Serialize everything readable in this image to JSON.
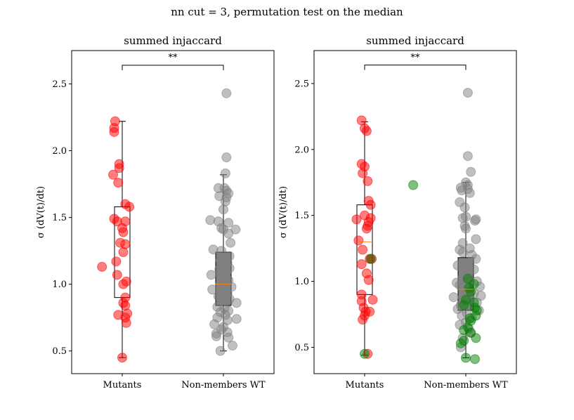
{
  "figure": {
    "suptitle": "nn cut = 3, permutation test on the median"
  },
  "chart_data": [
    {
      "type": "scatter",
      "subtype": "box-and-strip",
      "title": "summed injaccard",
      "xlabel": "",
      "ylabel": "σ (dV(t)/dt)",
      "categories": [
        "Mutants",
        "Non-members WT"
      ],
      "ylim": [
        0.33,
        2.75
      ],
      "yticks": [
        0.5,
        1.0,
        1.5,
        2.0,
        2.5
      ],
      "ytick_labels": [
        "0.5",
        "1.0",
        "1.5",
        "2.0",
        "2.5"
      ],
      "grid": false,
      "significance": {
        "label": "**",
        "between": [
          "Mutants",
          "Non-members WT"
        ],
        "y": 2.64
      },
      "boxes": [
        {
          "category": "Mutants",
          "whisker_low": 0.45,
          "q1": 0.9,
          "median": 1.31,
          "q3": 1.58,
          "whisker_high": 2.22,
          "fill": "none"
        },
        {
          "category": "Non-members WT",
          "whisker_low": 0.5,
          "q1": 0.84,
          "median": 1.0,
          "q3": 1.24,
          "whisker_high": 1.82,
          "fill": "#808080"
        }
      ],
      "series": [
        {
          "category": "Mutants",
          "color": "#ff0000",
          "points": [
            [
              -0.07,
              2.22
            ],
            [
              -0.08,
              2.17
            ],
            [
              -0.08,
              2.14
            ],
            [
              -0.03,
              1.9
            ],
            [
              -0.03,
              1.87
            ],
            [
              -0.09,
              1.82
            ],
            [
              -0.04,
              1.76
            ],
            [
              0.03,
              1.6
            ],
            [
              0.07,
              1.58
            ],
            [
              -0.08,
              1.49
            ],
            [
              -0.05,
              1.47
            ],
            [
              0.03,
              1.47
            ],
            [
              0.0,
              1.42
            ],
            [
              0.01,
              1.39
            ],
            [
              -0.02,
              1.31
            ],
            [
              0.03,
              1.3
            ],
            [
              0.01,
              1.24
            ],
            [
              -0.06,
              1.17
            ],
            [
              -0.2,
              1.13
            ],
            [
              -0.05,
              1.07
            ],
            [
              0.04,
              1.02
            ],
            [
              0.01,
              1.0
            ],
            [
              0.03,
              0.9
            ],
            [
              0.01,
              0.86
            ],
            [
              0.03,
              0.84
            ],
            [
              -0.04,
              0.77
            ],
            [
              0.05,
              0.78
            ],
            [
              0.03,
              0.75
            ],
            [
              0.04,
              0.71
            ],
            [
              0.0,
              0.45
            ]
          ]
        },
        {
          "category": "Non-members WT",
          "color": "#808080",
          "points": [
            [
              0.03,
              2.43
            ],
            [
              0.03,
              1.95
            ],
            [
              0.02,
              1.83
            ],
            [
              -0.05,
              1.72
            ],
            [
              0.01,
              1.72
            ],
            [
              0.03,
              1.7
            ],
            [
              0.05,
              1.68
            ],
            [
              -0.04,
              1.66
            ],
            [
              0.03,
              1.65
            ],
            [
              0.02,
              1.62
            ],
            [
              0.0,
              1.56
            ],
            [
              -0.13,
              1.48
            ],
            [
              -0.05,
              1.47
            ],
            [
              0.05,
              1.46
            ],
            [
              -0.02,
              1.42
            ],
            [
              0.12,
              1.41
            ],
            [
              0.0,
              1.41
            ],
            [
              0.05,
              1.38
            ],
            [
              0.07,
              1.31
            ],
            [
              -0.1,
              1.26
            ],
            [
              -0.02,
              1.25
            ],
            [
              0.06,
              1.21
            ],
            [
              -0.03,
              1.18
            ],
            [
              0.04,
              1.16
            ],
            [
              0.01,
              1.14
            ],
            [
              0.06,
              1.12
            ],
            [
              -0.04,
              1.11
            ],
            [
              0.03,
              1.09
            ],
            [
              -0.12,
              1.07
            ],
            [
              0.02,
              1.06
            ],
            [
              0.05,
              1.03
            ],
            [
              -0.03,
              1.0
            ],
            [
              0.08,
              0.98
            ],
            [
              -0.11,
              0.96
            ],
            [
              0.0,
              0.95
            ],
            [
              0.04,
              0.93
            ],
            [
              -0.05,
              0.91
            ],
            [
              0.06,
              0.89
            ],
            [
              0.13,
              0.86
            ],
            [
              -0.06,
              0.83
            ],
            [
              0.01,
              0.82
            ],
            [
              0.05,
              0.8
            ],
            [
              -0.03,
              0.79
            ],
            [
              0.02,
              0.77
            ],
            [
              -0.06,
              0.75
            ],
            [
              0.04,
              0.73
            ],
            [
              0.13,
              0.74
            ],
            [
              -0.09,
              0.7
            ],
            [
              0.0,
              0.68
            ],
            [
              -0.02,
              0.66
            ],
            [
              0.04,
              0.64
            ],
            [
              -0.07,
              0.63
            ],
            [
              -0.07,
              0.61
            ],
            [
              0.05,
              0.6
            ],
            [
              0.09,
              0.54
            ],
            [
              -0.03,
              0.5
            ]
          ]
        }
      ]
    },
    {
      "type": "scatter",
      "subtype": "box-and-strip",
      "title": "summed injaccard",
      "xlabel": "",
      "ylabel": "σ (dV(t)/dt)",
      "categories": [
        "Mutants",
        "Non-members WT"
      ],
      "ylim": [
        0.3,
        2.75
      ],
      "yticks": [
        0.5,
        1.0,
        1.5,
        2.0,
        2.5
      ],
      "ytick_labels": [
        "0.5",
        "1.0",
        "1.5",
        "2.0",
        "2.5"
      ],
      "grid": false,
      "significance": {
        "label": "**",
        "between": [
          "Mutants",
          "Non-members WT"
        ],
        "y": 2.64
      },
      "boxes": [
        {
          "category": "Mutants",
          "whisker_low": 0.44,
          "q1": 0.9,
          "median": 1.3,
          "q3": 1.58,
          "whisker_high": 2.21,
          "fill": "none"
        },
        {
          "category": "Non-members WT",
          "whisker_low": 0.42,
          "q1": 0.78,
          "median": 0.94,
          "q3": 1.18,
          "whisker_high": 1.75,
          "fill": "#808080"
        }
      ],
      "series": [
        {
          "category": "Mutants",
          "color": "#ff0000",
          "points": [
            [
              -0.03,
              2.22
            ],
            [
              0.0,
              2.16
            ],
            [
              0.02,
              2.14
            ],
            [
              -0.03,
              1.89
            ],
            [
              0.0,
              1.87
            ],
            [
              -0.02,
              1.82
            ],
            [
              0.03,
              1.76
            ],
            [
              0.04,
              1.61
            ],
            [
              0.06,
              1.58
            ],
            [
              -0.08,
              1.47
            ],
            [
              0.0,
              1.5
            ],
            [
              0.06,
              1.48
            ],
            [
              0.04,
              1.45
            ],
            [
              0.03,
              1.42
            ],
            [
              0.02,
              1.4
            ],
            [
              -0.06,
              1.31
            ],
            [
              -0.02,
              1.24
            ],
            [
              0.07,
              1.17
            ],
            [
              0.05,
              1.17
            ],
            [
              -0.03,
              1.13
            ],
            [
              0.02,
              1.06
            ],
            [
              0.04,
              1.01
            ],
            [
              -0.03,
              0.9
            ],
            [
              0.08,
              0.86
            ],
            [
              -0.03,
              0.85
            ],
            [
              -0.01,
              0.8
            ],
            [
              0.01,
              0.77
            ],
            [
              0.05,
              0.77
            ],
            [
              0.0,
              0.74
            ],
            [
              -0.02,
              0.71
            ],
            [
              0.03,
              0.45
            ]
          ]
        },
        {
          "category": "Non-members WT",
          "color": "#808080",
          "points": [
            [
              0.02,
              2.43
            ],
            [
              0.02,
              1.95
            ],
            [
              0.05,
              1.83
            ],
            [
              0.0,
              1.75
            ],
            [
              0.02,
              1.73
            ],
            [
              -0.05,
              1.71
            ],
            [
              0.02,
              1.7
            ],
            [
              -0.04,
              1.69
            ],
            [
              0.04,
              1.67
            ],
            [
              -0.06,
              1.6
            ],
            [
              -0.01,
              1.56
            ],
            [
              0.0,
              1.49
            ],
            [
              0.1,
              1.47
            ],
            [
              -0.03,
              1.48
            ],
            [
              0.09,
              1.46
            ],
            [
              -0.01,
              1.42
            ],
            [
              0.0,
              1.4
            ],
            [
              0.1,
              1.32
            ],
            [
              -0.03,
              1.29
            ],
            [
              0.04,
              1.25
            ],
            [
              -0.06,
              1.24
            ],
            [
              -0.03,
              1.22
            ],
            [
              0.06,
              1.2
            ],
            [
              0.1,
              1.17
            ],
            [
              -0.08,
              1.12
            ],
            [
              0.08,
              1.09
            ],
            [
              0.01,
              1.06
            ],
            [
              -0.03,
              1.03
            ],
            [
              0.11,
              1.0
            ],
            [
              0.04,
              0.99
            ],
            [
              -0.09,
              0.99
            ],
            [
              -0.06,
              0.97
            ],
            [
              0.14,
              0.96
            ],
            [
              -0.01,
              0.94
            ],
            [
              0.08,
              0.91
            ],
            [
              0.15,
              0.89
            ],
            [
              -0.12,
              0.88
            ],
            [
              0.04,
              0.86
            ],
            [
              0.11,
              0.84
            ],
            [
              -0.05,
              0.82
            ],
            [
              -0.08,
              0.79
            ],
            [
              0.13,
              0.78
            ],
            [
              0.01,
              0.76
            ],
            [
              -0.04,
              0.74
            ],
            [
              0.06,
              0.72
            ],
            [
              0.0,
              0.69
            ],
            [
              -0.06,
              0.67
            ],
            [
              0.03,
              0.64
            ],
            [
              0.05,
              0.61
            ],
            [
              -0.03,
              0.57
            ],
            [
              -0.05,
              0.5
            ]
          ]
        },
        {
          "category": "Non-members WT",
          "color": "#008000",
          "points": [
            [
              -0.52,
              1.73
            ],
            [
              0.02,
              1.02
            ],
            [
              0.08,
              0.98
            ],
            [
              0.03,
              0.95
            ],
            [
              0.05,
              0.92
            ],
            [
              0.0,
              0.86
            ],
            [
              0.08,
              0.84
            ],
            [
              -0.02,
              0.82
            ],
            [
              0.09,
              0.8
            ],
            [
              0.11,
              0.78
            ],
            [
              0.1,
              0.74
            ],
            [
              0.04,
              0.72
            ],
            [
              0.05,
              0.7
            ],
            [
              0.02,
              0.65
            ],
            [
              -0.02,
              0.63
            ],
            [
              0.05,
              0.61
            ],
            [
              0.1,
              0.57
            ],
            [
              -0.02,
              0.55
            ],
            [
              -0.05,
              0.53
            ],
            [
              0.0,
              0.42
            ],
            [
              0.09,
              0.41
            ]
          ]
        },
        {
          "category": "Mutants",
          "color": "#008000",
          "points": [
            [
              0.06,
              1.17
            ],
            [
              0.0,
              0.45
            ]
          ]
        }
      ]
    }
  ]
}
